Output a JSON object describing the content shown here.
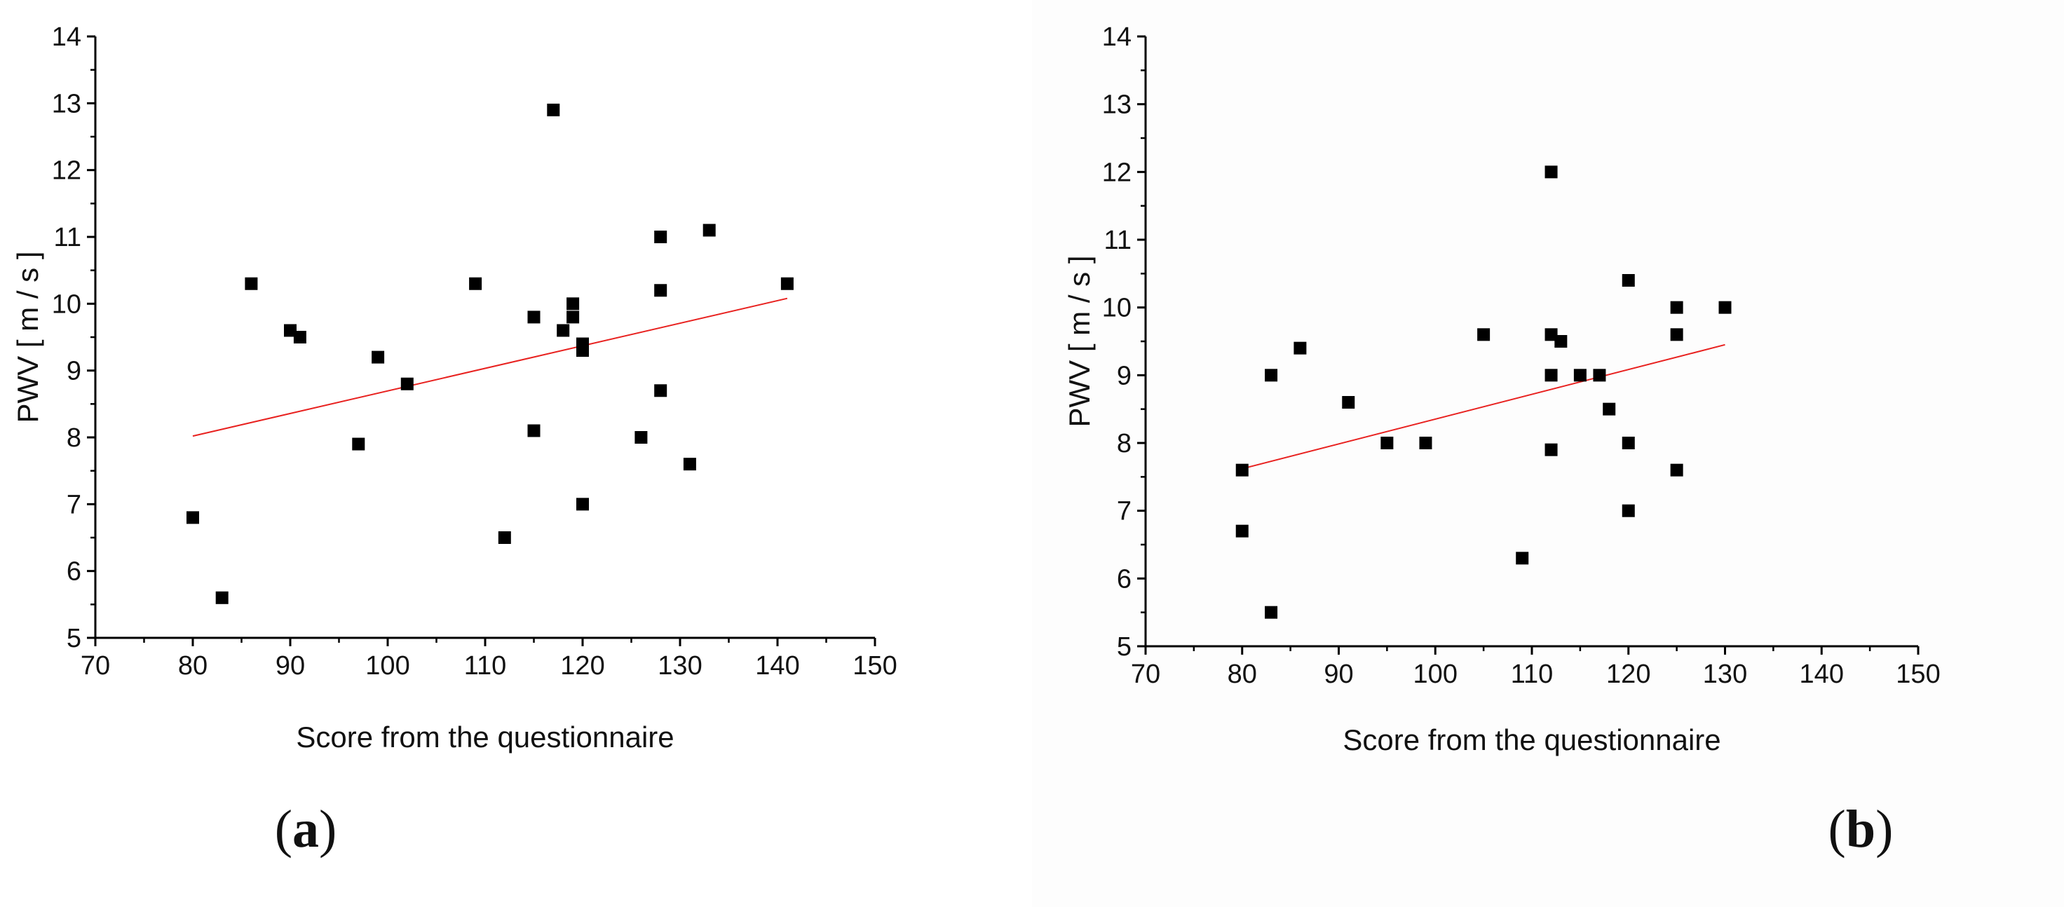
{
  "chart_data": [
    {
      "panel_label": "a",
      "type": "scatter",
      "xlabel": "Score from the questionnaire",
      "ylabel": "PWV [ m / s ]",
      "xlim": [
        70,
        150
      ],
      "ylim": [
        5,
        14
      ],
      "xticks": [
        70,
        80,
        90,
        100,
        110,
        120,
        130,
        140,
        150
      ],
      "yticks": [
        5,
        6,
        7,
        8,
        9,
        10,
        11,
        12,
        13,
        14
      ],
      "marker_color": "#000000",
      "fit_color": "#e8211f",
      "points": [
        [
          80,
          6.8
        ],
        [
          83,
          5.6
        ],
        [
          86,
          10.3
        ],
        [
          90,
          9.6
        ],
        [
          91,
          9.5
        ],
        [
          97,
          7.9
        ],
        [
          99,
          9.2
        ],
        [
          102,
          8.8
        ],
        [
          109,
          10.3
        ],
        [
          112,
          6.5
        ],
        [
          115,
          9.8
        ],
        [
          115,
          8.1
        ],
        [
          117,
          12.9
        ],
        [
          118,
          9.6
        ],
        [
          119,
          10.0
        ],
        [
          119,
          9.8
        ],
        [
          120,
          9.4
        ],
        [
          120,
          9.3
        ],
        [
          120,
          7.0
        ],
        [
          126,
          8.0
        ],
        [
          128,
          11.0
        ],
        [
          128,
          10.2
        ],
        [
          128,
          8.7
        ],
        [
          131,
          7.6
        ],
        [
          133,
          11.1
        ],
        [
          141,
          10.3
        ]
      ],
      "fit_line": [
        [
          80,
          8.02
        ],
        [
          141,
          10.08
        ]
      ]
    },
    {
      "panel_label": "b",
      "type": "scatter",
      "xlabel": "Score from the questionnaire",
      "ylabel": "PWV [ m / s ]",
      "xlim": [
        70,
        150
      ],
      "ylim": [
        5,
        14
      ],
      "xticks": [
        70,
        80,
        90,
        100,
        110,
        120,
        130,
        140,
        150
      ],
      "yticks": [
        5,
        6,
        7,
        8,
        9,
        10,
        11,
        12,
        13,
        14
      ],
      "marker_color": "#000000",
      "fit_color": "#e8211f",
      "points": [
        [
          80,
          7.6
        ],
        [
          80,
          6.7
        ],
        [
          83,
          9.0
        ],
        [
          83,
          5.5
        ],
        [
          86,
          9.4
        ],
        [
          91,
          8.6
        ],
        [
          95,
          8.0
        ],
        [
          99,
          8.0
        ],
        [
          105,
          9.6
        ],
        [
          109,
          6.3
        ],
        [
          112,
          12.0
        ],
        [
          112,
          9.6
        ],
        [
          112,
          9.0
        ],
        [
          112,
          7.9
        ],
        [
          113,
          9.5
        ],
        [
          115,
          9.0
        ],
        [
          117,
          9.0
        ],
        [
          118,
          8.5
        ],
        [
          120,
          10.4
        ],
        [
          120,
          8.0
        ],
        [
          120,
          7.0
        ],
        [
          125,
          10.0
        ],
        [
          125,
          9.6
        ],
        [
          125,
          7.6
        ],
        [
          130,
          10.0
        ]
      ],
      "fit_line": [
        [
          80,
          7.62
        ],
        [
          130,
          9.45
        ]
      ]
    }
  ]
}
